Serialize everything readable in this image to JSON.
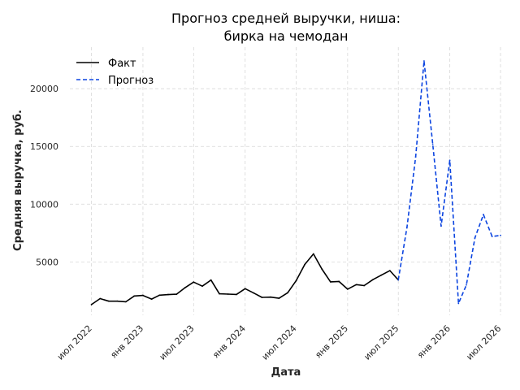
{
  "chart_data": {
    "type": "line",
    "title_lines": [
      "Прогноз средней выручки, ниша:",
      "бирка на чемодан"
    ],
    "xlabel": "Дата",
    "ylabel": "Средняя выручка, руб.",
    "xlim": [
      "2022-04-15",
      "2026-07-01"
    ],
    "ylim": [
      380,
      23600
    ],
    "x_ticks": [
      {
        "date": "2022-07-01",
        "label": "июл 2022"
      },
      {
        "date": "2023-01-01",
        "label": "янв 2023"
      },
      {
        "date": "2023-07-01",
        "label": "июл 2023"
      },
      {
        "date": "2024-01-01",
        "label": "янв 2024"
      },
      {
        "date": "2024-07-01",
        "label": "июл 2024"
      },
      {
        "date": "2025-01-01",
        "label": "янв 2025"
      },
      {
        "date": "2025-07-01",
        "label": "июл 2025"
      },
      {
        "date": "2026-01-01",
        "label": "янв 2026"
      },
      {
        "date": "2026-07-01",
        "label": "июл 2026"
      }
    ],
    "y_ticks": [
      {
        "value": 5000,
        "label": "5000"
      },
      {
        "value": 10000,
        "label": "10000"
      },
      {
        "value": 15000,
        "label": "15000"
      },
      {
        "value": 20000,
        "label": "20000"
      }
    ],
    "grid": true,
    "legend_position": "top-left",
    "series": [
      {
        "name": "Факт",
        "color": "#000000",
        "dash": "solid",
        "points": [
          {
            "x": "2022-07-01",
            "y": 1300
          },
          {
            "x": "2022-08-01",
            "y": 1820
          },
          {
            "x": "2022-09-01",
            "y": 1600
          },
          {
            "x": "2022-10-01",
            "y": 1600
          },
          {
            "x": "2022-11-01",
            "y": 1550
          },
          {
            "x": "2022-12-01",
            "y": 2050
          },
          {
            "x": "2023-01-01",
            "y": 2100
          },
          {
            "x": "2023-02-01",
            "y": 1780
          },
          {
            "x": "2023-03-01",
            "y": 2120
          },
          {
            "x": "2023-04-01",
            "y": 2170
          },
          {
            "x": "2023-05-01",
            "y": 2200
          },
          {
            "x": "2023-06-01",
            "y": 2780
          },
          {
            "x": "2023-07-01",
            "y": 3250
          },
          {
            "x": "2023-08-01",
            "y": 2900
          },
          {
            "x": "2023-09-01",
            "y": 3430
          },
          {
            "x": "2023-10-01",
            "y": 2240
          },
          {
            "x": "2023-11-01",
            "y": 2210
          },
          {
            "x": "2023-12-01",
            "y": 2180
          },
          {
            "x": "2024-01-01",
            "y": 2680
          },
          {
            "x": "2024-02-01",
            "y": 2300
          },
          {
            "x": "2024-03-01",
            "y": 1930
          },
          {
            "x": "2024-04-01",
            "y": 1950
          },
          {
            "x": "2024-05-01",
            "y": 1850
          },
          {
            "x": "2024-06-01",
            "y": 2330
          },
          {
            "x": "2024-07-01",
            "y": 3360
          },
          {
            "x": "2024-08-01",
            "y": 4780
          },
          {
            "x": "2024-09-01",
            "y": 5690
          },
          {
            "x": "2024-10-01",
            "y": 4390
          },
          {
            "x": "2024-11-01",
            "y": 3270
          },
          {
            "x": "2024-12-01",
            "y": 3310
          },
          {
            "x": "2025-01-01",
            "y": 2640
          },
          {
            "x": "2025-02-01",
            "y": 3030
          },
          {
            "x": "2025-03-01",
            "y": 2950
          },
          {
            "x": "2025-04-01",
            "y": 3460
          },
          {
            "x": "2025-05-01",
            "y": 3850
          },
          {
            "x": "2025-06-01",
            "y": 4240
          },
          {
            "x": "2025-07-01",
            "y": 3440
          }
        ]
      },
      {
        "name": "Прогноз",
        "color": "#0b44e0",
        "dash": "dashed",
        "points": [
          {
            "x": "2025-07-01",
            "y": 3440
          },
          {
            "x": "2025-08-01",
            "y": 8000
          },
          {
            "x": "2025-09-01",
            "y": 14100
          },
          {
            "x": "2025-10-01",
            "y": 22400
          },
          {
            "x": "2025-11-01",
            "y": 15200
          },
          {
            "x": "2025-12-01",
            "y": 8100
          },
          {
            "x": "2026-01-01",
            "y": 13800
          },
          {
            "x": "2026-02-01",
            "y": 1400
          },
          {
            "x": "2026-03-01",
            "y": 3000
          },
          {
            "x": "2026-04-01",
            "y": 7100
          },
          {
            "x": "2026-05-01",
            "y": 9100
          },
          {
            "x": "2026-06-01",
            "y": 7200
          },
          {
            "x": "2026-07-01",
            "y": 7300
          }
        ]
      }
    ]
  }
}
